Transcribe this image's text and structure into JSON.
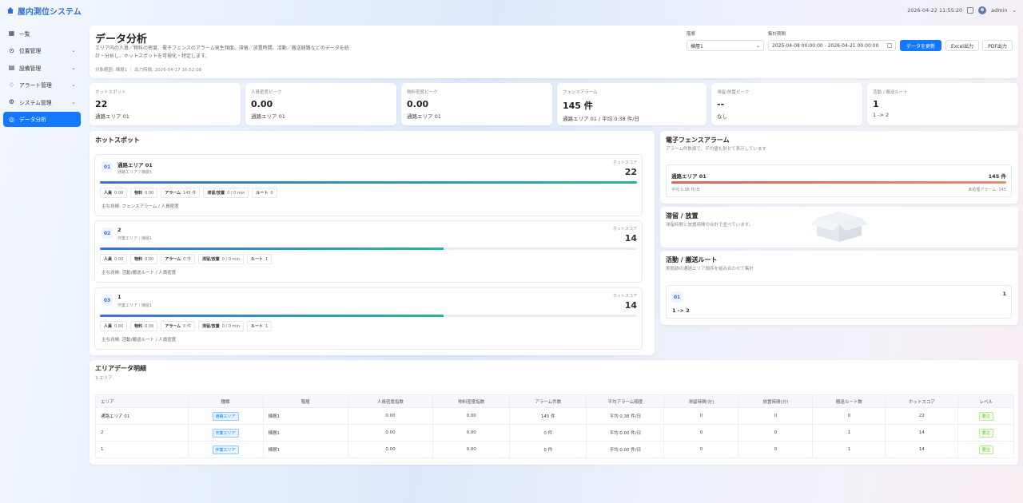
{
  "app": {
    "title": "屋内測位システム",
    "datetime": "2026-04-22 11:55:20",
    "user": "admin"
  },
  "sidebar": {
    "items": [
      {
        "label": "一覧",
        "icon": "grid-icon",
        "chev": ""
      },
      {
        "label": "位置管理",
        "icon": "location-pin-icon",
        "chev": "⌄"
      },
      {
        "label": "設備管理",
        "icon": "device-icon",
        "chev": "⌄"
      },
      {
        "label": "アラート管理",
        "icon": "bell-icon",
        "chev": "⌄"
      },
      {
        "label": "システム管理",
        "icon": "gear-icon",
        "chev": "⌄"
      },
      {
        "label": "データ分析",
        "icon": "chart-icon",
        "chev": ""
      }
    ]
  },
  "header": {
    "title": "データ分析",
    "desc1": "エリア内の人員／物料の密度、電子フェンスのアラーム発生頻度、滞留／放置時間、活動／搬送経路などのデータを統",
    "desc2": "計・分析し、ホットスポットを可視化・特定します。",
    "meta": "対象範囲: 棟層1  ｜  出力時間: 2026-04-17 16:52:08"
  },
  "filters": {
    "floor_label": "階層",
    "floor_value": "棟層1",
    "period_label": "集計期間",
    "period_value": "2025-04-08 00:00:00 - 2026-04-21 00:00:00",
    "refresh": "データを更新",
    "excel": "Excel出力",
    "pdf": "PDF出力"
  },
  "kpis": [
    {
      "label": "ホットスポット",
      "value": "22",
      "sub": "通路エリア 01"
    },
    {
      "label": "人員密度ピーク",
      "value": "0.00",
      "sub": "通路エリア 01"
    },
    {
      "label": "物料密度ピーク",
      "value": "0.00",
      "sub": "通路エリア 01"
    },
    {
      "label": "フェンスアラーム",
      "value": "145 件",
      "sub": "通路エリア 01 / 平均 0.38 件/日"
    },
    {
      "label": "滞留/放置ピーク",
      "value": "--",
      "sub": "なし"
    },
    {
      "label": "活動 / 搬送ルート",
      "value": "1",
      "sub": "1 -> 2"
    }
  ],
  "hotspot": {
    "title": "ホットスポット",
    "score_label": "ホットスコア",
    "items": [
      {
        "rank": "01",
        "name": "通路エリア 01",
        "sub": "通路エリア / 棟層1",
        "score": "22",
        "fill": 1.0,
        "chips": [
          [
            "人員",
            "0.00"
          ],
          [
            "物料",
            "0.00"
          ],
          [
            "アラーム",
            "145 件"
          ],
          [
            "滞留/放置",
            "0 / 0 min"
          ],
          [
            "ルート",
            "0"
          ]
        ],
        "main": "主な兆候: フェンスアラーム / 人員密度"
      },
      {
        "rank": "02",
        "name": "2",
        "sub": "作業エリア / 棟層1",
        "score": "14",
        "fill": 0.64,
        "chips": [
          [
            "人員",
            "0.00"
          ],
          [
            "物料",
            "0.00"
          ],
          [
            "アラーム",
            "0 件"
          ],
          [
            "滞留/放置",
            "0 / 0 min"
          ],
          [
            "ルート",
            "1"
          ]
        ],
        "main": "主な兆候: 活動/搬送ルート / 人員密度"
      },
      {
        "rank": "03",
        "name": "1",
        "sub": "作業エリア / 棟層1",
        "score": "14",
        "fill": 0.64,
        "chips": [
          [
            "人員",
            "0.00"
          ],
          [
            "物料",
            "0.00"
          ],
          [
            "アラーム",
            "0 件"
          ],
          [
            "滞留/放置",
            "0 / 0 min"
          ],
          [
            "ルート",
            "1"
          ]
        ],
        "main": "主な兆候: 活動/搬送ルート / 人員密度"
      }
    ]
  },
  "fence": {
    "title": "電子フェンスアラーム",
    "desc": "アラーム件数順で、平均値も併せて表示しています",
    "name": "通路エリア 01",
    "count": "145 件",
    "avg": "平均 0.38 件/日",
    "unhandled": "未処理アラーム: 145",
    "fill": 1.0
  },
  "dwell": {
    "title": "滞留 / 放置",
    "desc": "滞留時間と放置時間の合計で並べています。"
  },
  "route": {
    "title": "活動 / 搬送ルート",
    "desc": "実軌跡の通過エリア順序を組み合わせて集計",
    "rank": "01",
    "count": "1",
    "path": "1 -> 2"
  },
  "detail": {
    "title": "エリアデータ明細",
    "count": "3 エリア",
    "headers": [
      "エリア",
      "種類",
      "階層",
      "人員密度指数",
      "物料密度指数",
      "アラーム件数",
      "平均アラーム頻度",
      "滞留時間(分)",
      "放置時間(分)",
      "搬送ルート数",
      "ホットスコア",
      "レベル"
    ],
    "rows": [
      [
        "通路エリア 01",
        "通路エリア",
        "棟層1",
        "0.00",
        "0.00",
        "145 件",
        "平均 0.38 件/日",
        "0",
        "0",
        "0",
        "22",
        "要注"
      ],
      [
        "2",
        "作業エリア",
        "棟層1",
        "0.00",
        "0.00",
        "0 件",
        "平均 0.00 件/日",
        "0",
        "0",
        "1",
        "14",
        "要注"
      ],
      [
        "1",
        "作業エリア",
        "棟層1",
        "0.00",
        "0.00",
        "0 件",
        "平均 0.00 件/日",
        "0",
        "0",
        "1",
        "14",
        "要注"
      ]
    ]
  }
}
